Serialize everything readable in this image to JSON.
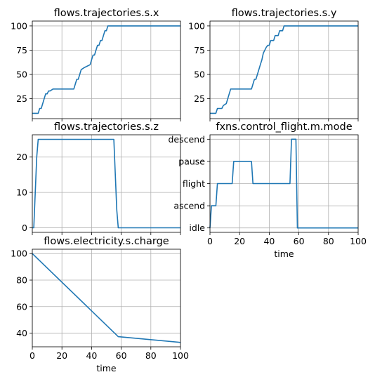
{
  "chart_data": [
    {
      "type": "line",
      "title": "flows.trajectories.s.x",
      "xlabel": "",
      "ylabel": "",
      "xlim": [
        0,
        100
      ],
      "ylim": [
        4.5,
        105
      ],
      "xticks": [
        0,
        20,
        40,
        60,
        80,
        100
      ],
      "show_xtick_labels": false,
      "yticks": [
        25,
        50,
        75,
        100
      ],
      "ytick_labels": [
        "25",
        "50",
        "75",
        "100"
      ],
      "grid": true,
      "series": [
        {
          "color": "#1f77b4",
          "x": [
            0,
            4,
            5,
            6,
            7,
            8,
            9,
            10,
            11,
            12,
            14,
            15,
            20,
            28,
            29,
            30,
            31,
            32,
            33,
            35,
            39,
            40,
            41,
            42,
            43,
            44,
            45,
            46,
            47,
            48,
            49,
            50,
            51,
            52,
            53,
            54,
            55,
            56,
            57,
            100
          ],
          "y": [
            10,
            10,
            15,
            15,
            20,
            25,
            30,
            30,
            33,
            33,
            35,
            35,
            35,
            35,
            40,
            45,
            45,
            50,
            55,
            57,
            60,
            65,
            70,
            70,
            75,
            80,
            80,
            85,
            85,
            90,
            95,
            95,
            100,
            100,
            100,
            100,
            100,
            100,
            100,
            100
          ]
        }
      ]
    },
    {
      "type": "line",
      "title": "flows.trajectories.s.y",
      "xlabel": "",
      "ylabel": "",
      "xlim": [
        0,
        100
      ],
      "ylim": [
        4.5,
        105
      ],
      "xticks": [
        0,
        20,
        40,
        60,
        80,
        100
      ],
      "show_xtick_labels": false,
      "yticks": [
        25,
        50,
        75,
        100
      ],
      "ytick_labels": [
        "25",
        "50",
        "75",
        "100"
      ],
      "grid": true,
      "series": [
        {
          "color": "#1f77b4",
          "x": [
            0,
            4,
            5,
            8,
            9,
            11,
            12,
            13,
            14,
            15,
            28,
            29,
            30,
            31,
            32,
            33,
            34,
            35,
            36,
            38,
            39,
            40,
            41,
            42,
            43,
            44,
            45,
            46,
            47,
            48,
            49,
            50,
            51,
            52,
            53,
            54,
            55,
            56,
            57,
            100
          ],
          "y": [
            10,
            10,
            15,
            15,
            18,
            20,
            25,
            30,
            35,
            35,
            35,
            40,
            45,
            45,
            50,
            55,
            60,
            65,
            72,
            78,
            80,
            80,
            85,
            85,
            85,
            90,
            90,
            90,
            95,
            95,
            95,
            100,
            100,
            100,
            100,
            100,
            100,
            100,
            100,
            100
          ]
        }
      ]
    },
    {
      "type": "line",
      "title": "flows.trajectories.s.z",
      "xlabel": "",
      "ylabel": "",
      "xlim": [
        0,
        100
      ],
      "ylim": [
        -1.3,
        26.3
      ],
      "xticks": [
        0,
        20,
        40,
        60,
        80,
        100
      ],
      "show_xtick_labels": false,
      "yticks": [
        0,
        10,
        20
      ],
      "ytick_labels": [
        "0",
        "10",
        "20"
      ],
      "grid": true,
      "series": [
        {
          "color": "#1f77b4",
          "x": [
            0,
            1,
            2,
            3,
            4,
            55,
            56,
            57,
            58,
            100
          ],
          "y": [
            0,
            0,
            10,
            20,
            25,
            25,
            15,
            5,
            0,
            0
          ]
        }
      ]
    },
    {
      "type": "line",
      "title": "fxns.control_flight.m.mode",
      "xlabel": "time",
      "ylabel": "",
      "xlim": [
        0,
        100
      ],
      "ylim": [
        -0.2,
        4.2
      ],
      "xticks": [
        0,
        20,
        40,
        60,
        80,
        100
      ],
      "xtick_labels": [
        "0",
        "20",
        "40",
        "60",
        "80",
        "100"
      ],
      "show_xtick_labels": true,
      "yticks": [
        0,
        1,
        2,
        3,
        4
      ],
      "ytick_labels": [
        "idle",
        "ascend",
        "flight",
        "pause",
        "descend"
      ],
      "grid": true,
      "series": [
        {
          "color": "#1f77b4",
          "x": [
            0,
            1,
            4,
            5,
            15,
            16,
            28,
            29,
            54,
            55,
            58,
            59,
            100
          ],
          "y": [
            0,
            1,
            1,
            2,
            2,
            3,
            3,
            2,
            2,
            4,
            4,
            0,
            0
          ]
        }
      ]
    },
    {
      "type": "line",
      "title": "flows.electricity.s.charge",
      "xlabel": "time",
      "ylabel": "",
      "xlim": [
        0,
        100
      ],
      "ylim": [
        29.7,
        103.3
      ],
      "xticks": [
        0,
        20,
        40,
        60,
        80,
        100
      ],
      "xtick_labels": [
        "0",
        "20",
        "40",
        "60",
        "80",
        "100"
      ],
      "show_xtick_labels": true,
      "yticks": [
        40,
        60,
        80,
        100
      ],
      "ytick_labels": [
        "40",
        "60",
        "80",
        "100"
      ],
      "grid": true,
      "series": [
        {
          "color": "#1f77b4",
          "x": [
            0,
            58,
            100
          ],
          "y": [
            100,
            37.3,
            33
          ]
        }
      ]
    }
  ]
}
